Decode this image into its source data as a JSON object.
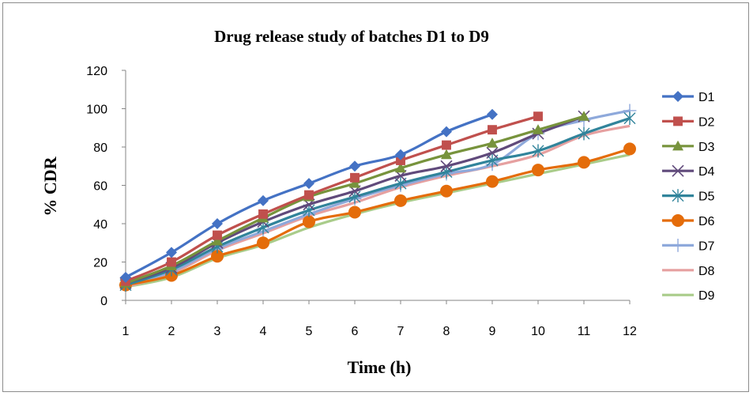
{
  "chart_data": {
    "type": "line",
    "title": "Drug release study of batches D1 to D9",
    "xlabel": "Time (h)",
    "ylabel": "% CDR",
    "x": [
      1,
      2,
      3,
      4,
      5,
      6,
      7,
      8,
      9,
      10,
      11,
      12
    ],
    "ylim": [
      0,
      120
    ],
    "yticks": [
      0,
      20,
      40,
      60,
      80,
      100,
      120
    ],
    "grid": false,
    "legend_position": "right",
    "series": [
      {
        "name": "D1",
        "color": "#4472C4",
        "marker": "diamond",
        "values": [
          12,
          25,
          40,
          52,
          61,
          70,
          76,
          88,
          97,
          null,
          null,
          null
        ]
      },
      {
        "name": "D2",
        "color": "#C0504D",
        "marker": "square",
        "values": [
          10,
          20,
          34,
          45,
          55,
          64,
          73,
          81,
          89,
          96,
          null,
          null
        ]
      },
      {
        "name": "D3",
        "color": "#77933C",
        "marker": "triangle",
        "values": [
          9,
          18,
          31,
          43,
          54,
          61,
          69,
          76,
          82,
          89,
          96,
          null
        ]
      },
      {
        "name": "D4",
        "color": "#604A7B",
        "marker": "x",
        "values": [
          9,
          17,
          30,
          41,
          50,
          57,
          65,
          70,
          77,
          87,
          96,
          null
        ]
      },
      {
        "name": "D5",
        "color": "#31849B",
        "marker": "star",
        "values": [
          8,
          16,
          28,
          38,
          47,
          54,
          61,
          67,
          73,
          78,
          87,
          95
        ]
      },
      {
        "name": "D6",
        "color": "#E46C0A",
        "marker": "circle",
        "values": [
          8,
          13,
          23,
          30,
          41,
          46,
          52,
          57,
          62,
          68,
          72,
          79
        ]
      },
      {
        "name": "D7",
        "color": "#8EA9DB",
        "marker": "plus",
        "values": [
          8,
          15,
          27,
          36,
          45,
          53,
          60,
          66,
          71,
          87,
          94,
          99
        ]
      },
      {
        "name": "D8",
        "color": "#E6A0A0",
        "marker": "none",
        "values": [
          7,
          14,
          26,
          35,
          44,
          51,
          59,
          65,
          70,
          76,
          86,
          91
        ]
      },
      {
        "name": "D9",
        "color": "#A9CC8A",
        "marker": "none",
        "values": [
          7,
          12,
          22,
          29,
          38,
          45,
          51,
          56,
          61,
          66,
          71,
          76
        ]
      }
    ]
  }
}
